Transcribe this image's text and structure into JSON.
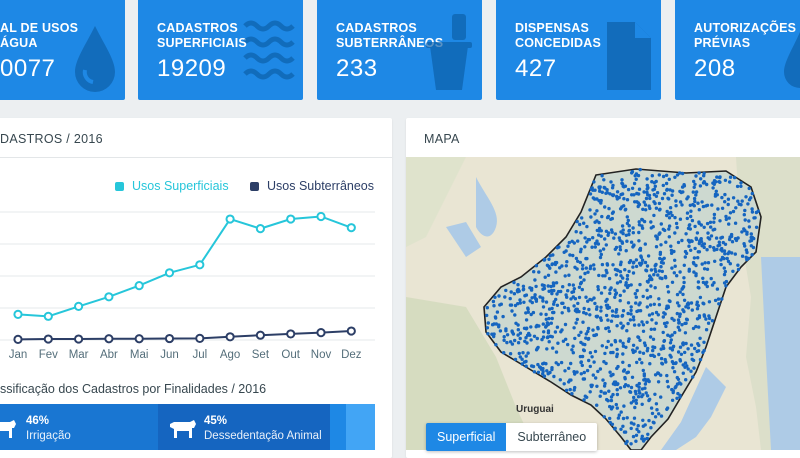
{
  "cards": [
    {
      "label": "AL DE USOS\nÁGUA",
      "value": "0077",
      "icon": "water-drop-icon"
    },
    {
      "label": "CADASTROS\nSUPERFICIAIS",
      "value": "19209",
      "icon": "waves-icon"
    },
    {
      "label": "CADASTROS\nSUBTERRÂNEOS",
      "value": "233",
      "icon": "bucket-icon"
    },
    {
      "label": "DISPENSAS\nCONCEDIDAS",
      "value": "427",
      "icon": "document-icon"
    },
    {
      "label": "AUTORIZAÇÕES\nPRÉVIAS",
      "value": "208",
      "icon": "drop-icon"
    }
  ],
  "cadastros": {
    "title": "DASTROS / 2016",
    "year_selected": "2016"
  },
  "mapa": {
    "title": "MAPA",
    "label_uruguai": "Uruguai",
    "toggle_superficial": "Superficial",
    "toggle_subterraneo": "Subterrâneo"
  },
  "finalidades": {
    "title": "ssificação dos Cadastros por Finalidades / 2016",
    "segments": [
      {
        "pct": "46%",
        "name": "Irrigação",
        "icon": "cow-icon"
      },
      {
        "pct": "45%",
        "name": "Dessedentação Animal",
        "icon": "cow-icon"
      }
    ]
  },
  "colors": {
    "card": "#1e88e5",
    "superficial": "#26c6da",
    "subterraneo": "#2c3e66",
    "map_dots": "#1565c0"
  },
  "chart_data": {
    "type": "line",
    "categories": [
      "Jan",
      "Fev",
      "Mar",
      "Abr",
      "Mai",
      "Jun",
      "Jul",
      "Ago",
      "Set",
      "Out",
      "Nov",
      "Dez"
    ],
    "series": [
      {
        "name": "Usos Superficiais",
        "values": [
          800,
          740,
          1050,
          1350,
          1700,
          2100,
          2350,
          3780,
          3480,
          3780,
          3860,
          3510
        ]
      },
      {
        "name": "Usos Subterrâneos",
        "values": [
          20,
          30,
          30,
          40,
          40,
          45,
          50,
          100,
          150,
          190,
          230,
          280
        ]
      }
    ],
    "title": "",
    "xlabel": "",
    "ylabel": "",
    "ylim": [
      0,
      4000
    ],
    "grid": true,
    "legend": "top-right"
  }
}
